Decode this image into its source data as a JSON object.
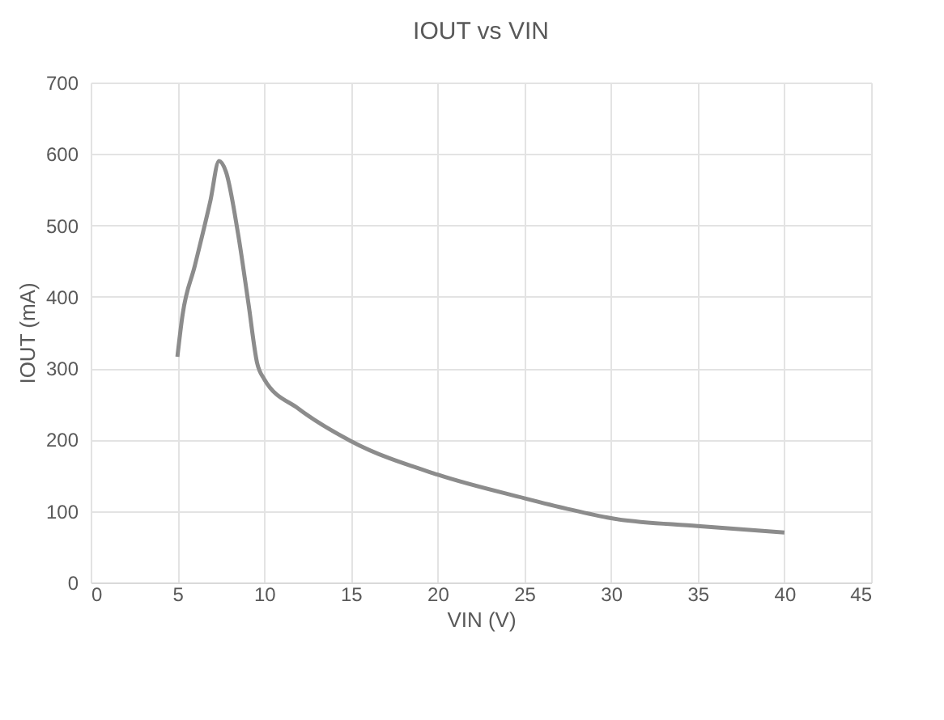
{
  "chart_data": {
    "type": "line",
    "title": "IOUT vs VIN",
    "xlabel": "VIN (V)",
    "ylabel": "IOUT (mA)",
    "series": [
      {
        "color": "#8c8c8c",
        "x": [
          5,
          5.3,
          6,
          6.9,
          7.4,
          7.8,
          8.5,
          9.1,
          9.6,
          10,
          12,
          15,
          20,
          25,
          27.5,
          30,
          35,
          40
        ],
        "values": [
          316,
          375,
          443,
          534,
          590,
          575,
          488,
          390,
          307,
          285,
          243,
          198,
          151,
          118,
          103,
          90,
          79,
          70
        ]
      }
    ],
    "xlim": [
      0,
      45
    ],
    "xticks": [
      0,
      5,
      10,
      15,
      20,
      25,
      30,
      35,
      40,
      45
    ],
    "ylim": [
      0,
      700
    ],
    "yticks": [
      0,
      100,
      200,
      300,
      400,
      500,
      600,
      700
    ],
    "grid": true
  }
}
